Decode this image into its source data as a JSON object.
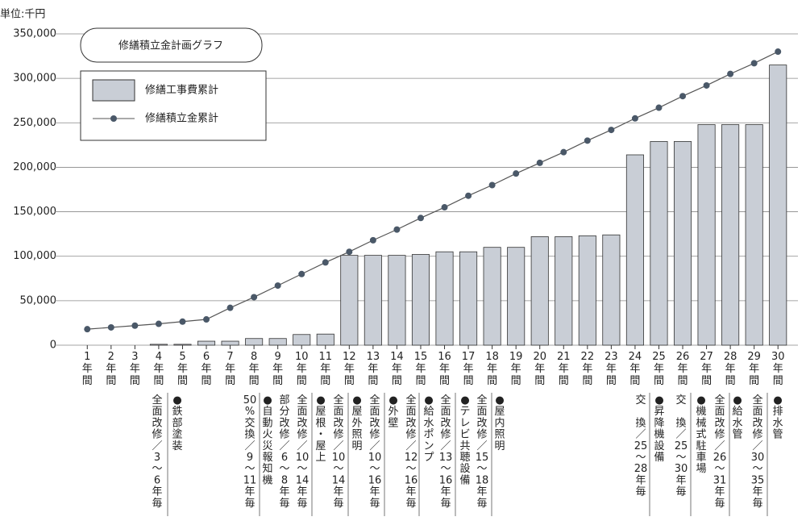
{
  "chart_data": {
    "type": "combo",
    "unit_label": "単位:千円",
    "title": "修繕積立金計画グラフ",
    "categories": [
      "1年間",
      "2年間",
      "3年間",
      "4年間",
      "5年間",
      "6年間",
      "7年間",
      "8年間",
      "9年間",
      "10年間",
      "11年間",
      "12年間",
      "13年間",
      "14年間",
      "15年間",
      "16年間",
      "17年間",
      "18年間",
      "19年間",
      "20年間",
      "21年間",
      "22年間",
      "23年間",
      "24年間",
      "25年間",
      "26年間",
      "27年間",
      "28年間",
      "29年間",
      "30年間"
    ],
    "series": [
      {
        "name": "修繕工事費累計",
        "type": "bar",
        "color": "#c9ced6",
        "values": [
          0,
          0,
          0,
          1000,
          1000,
          4500,
          4500,
          7500,
          7500,
          12000,
          12500,
          101000,
          101000,
          101000,
          102000,
          105000,
          105000,
          110000,
          110000,
          122000,
          122000,
          123000,
          124000,
          214000,
          229000,
          229000,
          248000,
          248000,
          248000,
          315000
        ]
      },
      {
        "name": "修繕積立金累計",
        "type": "line",
        "color": "#555555",
        "marker_color": "#4a5868",
        "values": [
          18000,
          20000,
          22000,
          24000,
          26500,
          29000,
          42000,
          54000,
          67000,
          80000,
          93000,
          105000,
          118000,
          130000,
          143000,
          155000,
          168000,
          180000,
          193000,
          205000,
          217000,
          230000,
          242000,
          255000,
          267000,
          280000,
          292000,
          305000,
          317000,
          330000
        ]
      }
    ],
    "ylim": [
      0,
      350000
    ],
    "yticks": [
      0,
      {
        "value": 50000,
        "label": "50,000"
      },
      {
        "value": 100000,
        "label": "100,000"
      },
      {
        "value": 150000,
        "label": "150,000"
      },
      {
        "value": 200000,
        "label": "200,000"
      },
      {
        "value": 250000,
        "label": "250,000"
      },
      {
        "value": 300000,
        "label": "300,000"
      },
      {
        "value": 350000,
        "label": "350,000"
      }
    ],
    "grid": true,
    "annotations": [
      "全面改修／3〜6年毎",
      "●鉄部塗装",
      "50%交換／9〜11年毎",
      "●自動火災報知機",
      "部分改修／6〜8年毎",
      "全面改修／10〜14年毎",
      "●屋根・屋上",
      "全面改修／10〜14年毎",
      "●屋外照明",
      "全面改修／10〜16年毎",
      "●外壁",
      "全面改修／12〜16年毎",
      "●給水ポンプ",
      "全面改修／13〜16年毎",
      "●テレビ共聴設備",
      "全面改修／15〜18年毎",
      "●屋内照明",
      "交　換／25〜28年毎",
      "●昇降機設備",
      "交　換／25〜30年毎",
      "●機械式駐車場",
      "全面改修／26〜31年毎",
      "●給水管",
      "全面改修／30〜35年毎",
      "●排水管"
    ]
  }
}
